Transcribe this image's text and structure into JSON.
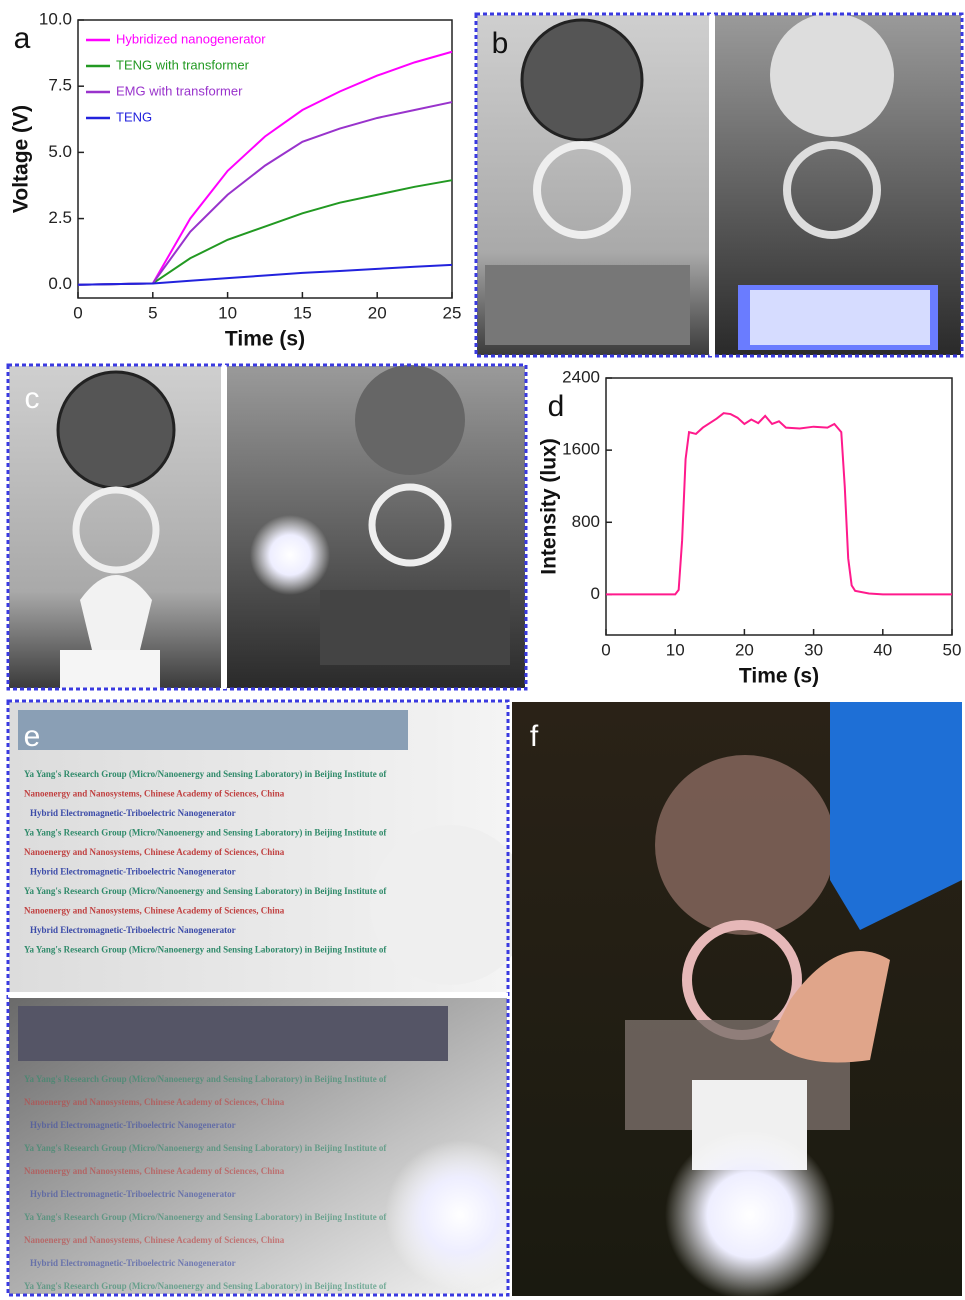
{
  "chart_data": [
    {
      "type": "line",
      "panel": "a",
      "xlabel": "Time (s)",
      "ylabel": "Voltage (V)",
      "x": [
        0,
        5,
        7.5,
        10,
        12.5,
        15,
        17.5,
        20,
        22.5,
        25
      ],
      "series": [
        {
          "name": "Hybridized nanogenerator",
          "color": "#ff00ff",
          "values": [
            0,
            0.05,
            2.5,
            4.3,
            5.6,
            6.6,
            7.3,
            7.9,
            8.4,
            8.8
          ]
        },
        {
          "name": "TENG with transformer",
          "color": "#229922",
          "values": [
            0,
            0.05,
            1.0,
            1.7,
            2.2,
            2.7,
            3.1,
            3.4,
            3.7,
            3.95
          ]
        },
        {
          "name": "EMG with transformer",
          "color": "#9933cc",
          "values": [
            0,
            0.05,
            2.0,
            3.4,
            4.5,
            5.4,
            5.9,
            6.3,
            6.6,
            6.9
          ]
        },
        {
          "name": "TENG",
          "color": "#2222dd",
          "values": [
            0,
            0.05,
            0.15,
            0.25,
            0.35,
            0.45,
            0.52,
            0.6,
            0.68,
            0.75
          ]
        }
      ],
      "xlim": [
        0,
        25
      ],
      "xticks": [
        0,
        5,
        10,
        15,
        20,
        25
      ],
      "ylim": [
        -0.5,
        10
      ],
      "yticks": [
        {
          "value": 0,
          "label": "0.0"
        },
        {
          "value": 2.5,
          "label": "2.5"
        },
        {
          "value": 5,
          "label": "5.0"
        },
        {
          "value": 7.5,
          "label": "7.5"
        },
        {
          "value": 10,
          "label": "10.0"
        }
      ],
      "legend": "upper left"
    },
    {
      "type": "line",
      "panel": "d",
      "xlabel": "Time (s)",
      "ylabel": "Intensity (lux)",
      "x": [
        0,
        10,
        10.5,
        11,
        11.5,
        12,
        13,
        14,
        15,
        16,
        17,
        18,
        19,
        20,
        21,
        22,
        23,
        24,
        25,
        26,
        28,
        30,
        32,
        33,
        34,
        34.5,
        35,
        35.5,
        36,
        38,
        40,
        45,
        50
      ],
      "series": [
        {
          "color": "#ff1a8c",
          "values": [
            0,
            0,
            50,
            600,
            1500,
            1800,
            1780,
            1850,
            1900,
            1950,
            2010,
            2000,
            1960,
            1890,
            1940,
            1900,
            1980,
            1890,
            1920,
            1850,
            1840,
            1860,
            1850,
            1890,
            1800,
            1200,
            400,
            100,
            40,
            10,
            0,
            0,
            0
          ]
        }
      ],
      "xlim": [
        0,
        50
      ],
      "xticks": [
        0,
        10,
        20,
        30,
        40,
        50
      ],
      "ylim": [
        -450,
        2400
      ],
      "yticks": [
        0,
        800,
        1600,
        2400
      ]
    }
  ],
  "photo_panels": [
    "b",
    "c",
    "e",
    "f"
  ],
  "photo_text": [
    "Ya Yang's Research Group (Micro/Nanoenergy and Sensing Laboratory) in Beijing Institute of",
    "Nanoenergy and Nanosystems, Chinese Academy of Sciences, China",
    "Hybrid Electromagnetic-Triboelectric Nanogenerator"
  ]
}
